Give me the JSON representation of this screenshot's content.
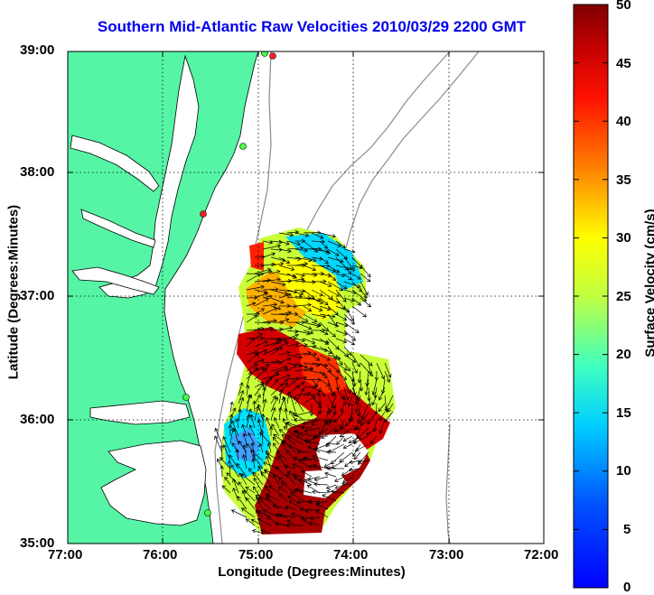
{
  "title": "Southern Mid-Atlantic Raw Velocities 2010/03/29 2200 GMT",
  "map": {
    "xlabel": "Longitude (Degrees:Minutes)",
    "ylabel": "Latitude (Degrees:Minutes)",
    "x_ticks": [
      "77:00",
      "76:00",
      "75:00",
      "74:00",
      "73:00",
      "72:00"
    ],
    "y_ticks": [
      "39:00",
      "38:00",
      "37:00",
      "36:00",
      "35:00"
    ],
    "land_color": "#55f5a5",
    "grid": true
  },
  "colorbar": {
    "label": "Surface Velocity (cm/s)",
    "ticks": [
      "50",
      "45",
      "40",
      "35",
      "30",
      "25",
      "20",
      "15",
      "10",
      "5",
      "0"
    ],
    "min": 0,
    "max": 50,
    "colormap": "jet"
  }
}
